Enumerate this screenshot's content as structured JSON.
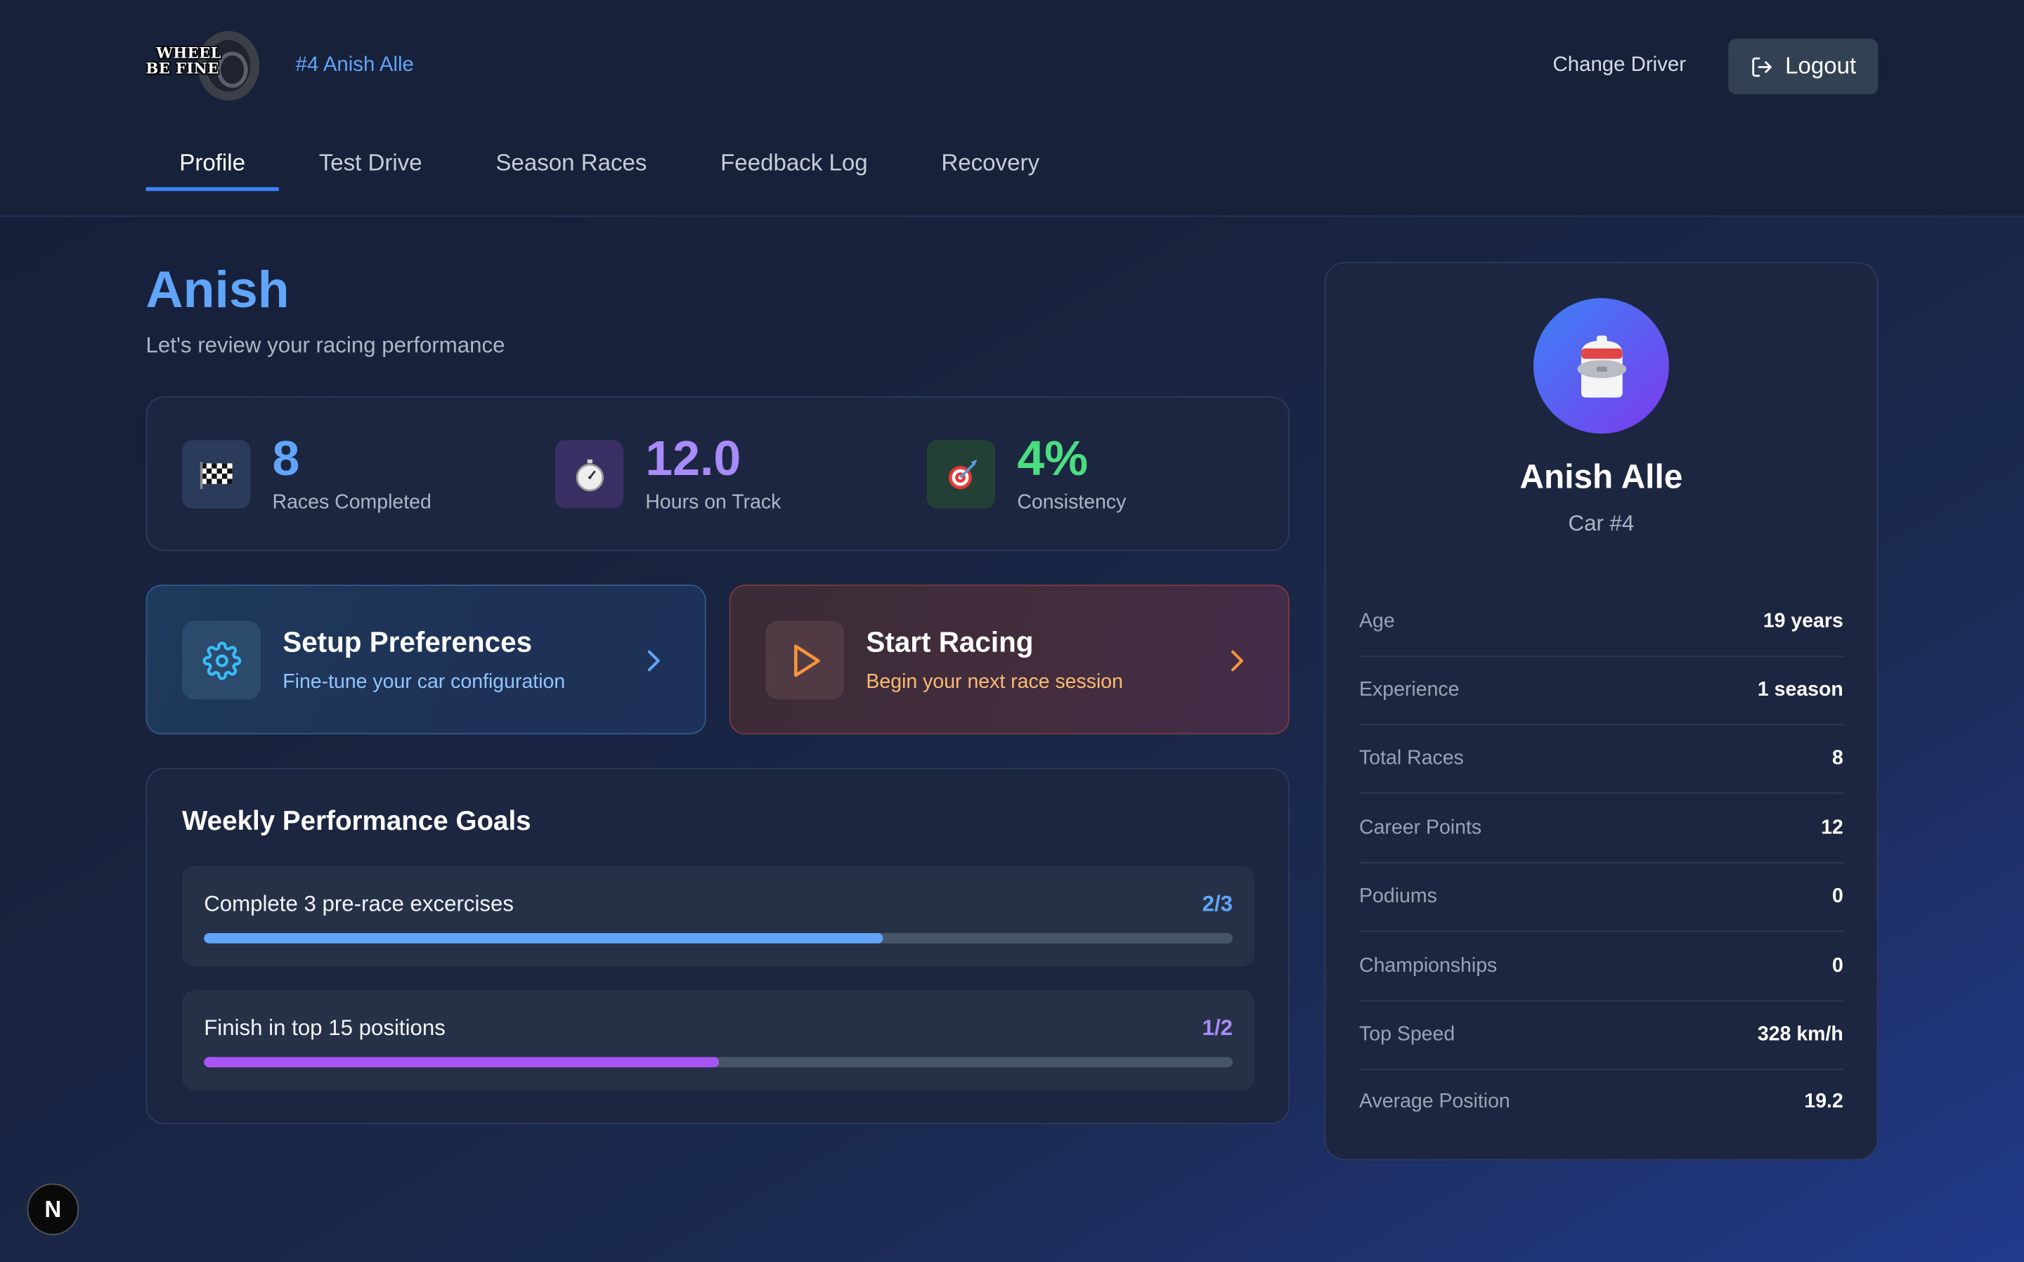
{
  "brand": {
    "logo_line1": "WHEEL",
    "logo_line2": "BE FINE"
  },
  "header": {
    "driver_tag": "#4 Anish Alle",
    "change_driver": "Change Driver",
    "logout": "Logout"
  },
  "tabs": [
    {
      "label": "Profile",
      "active": true
    },
    {
      "label": "Test Drive"
    },
    {
      "label": "Season Races"
    },
    {
      "label": "Feedback Log"
    },
    {
      "label": "Recovery"
    }
  ],
  "greeting": {
    "name": "Anish",
    "subtitle": "Let's review your racing performance"
  },
  "stats": [
    {
      "icon": "checkered-flag-icon",
      "value": "8",
      "label": "Races Completed",
      "color": "#60a5fa"
    },
    {
      "icon": "stopwatch-icon",
      "value": "12.0",
      "label": "Hours on Track",
      "color": "#a78bfa"
    },
    {
      "icon": "target-icon",
      "value": "4%",
      "label": "Consistency",
      "color": "#4ade80"
    }
  ],
  "actions": {
    "setup": {
      "title": "Setup Preferences",
      "subtitle": "Fine-tune your car configuration"
    },
    "race": {
      "title": "Start Racing",
      "subtitle": "Begin your next race session"
    }
  },
  "goals": {
    "title": "Weekly Performance Goals",
    "items": [
      {
        "text": "Complete 3 pre-race excercises",
        "count": "2/3",
        "progress": 0.66,
        "color": "#60a5fa"
      },
      {
        "text": "Finish in top 15 positions",
        "count": "1/2",
        "progress": 0.5,
        "color": "#a855f7"
      }
    ]
  },
  "profile": {
    "name": "Anish Alle",
    "car": "Car #4",
    "rows": [
      {
        "key": "Age",
        "value": "19 years"
      },
      {
        "key": "Experience",
        "value": "1 season"
      },
      {
        "key": "Total Races",
        "value": "8"
      },
      {
        "key": "Career Points",
        "value": "12"
      },
      {
        "key": "Podiums",
        "value": "0"
      },
      {
        "key": "Championships",
        "value": "0"
      },
      {
        "key": "Top Speed",
        "value": "328 km/h"
      },
      {
        "key": "Average Position",
        "value": "19.2"
      }
    ]
  },
  "badge": {
    "letter": "N"
  }
}
